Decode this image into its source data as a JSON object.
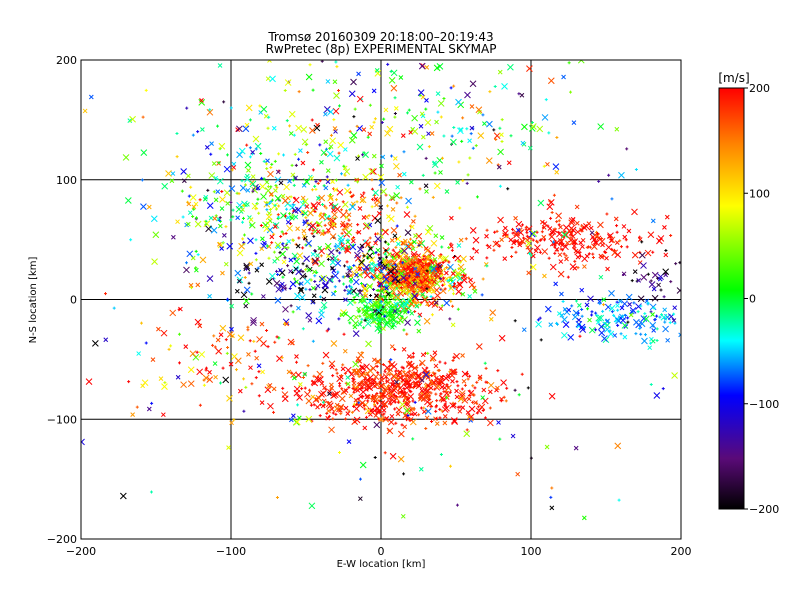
{
  "chart_data": {
    "type": "scatter",
    "title": "Tromsø 20160309 20:18:00–20:19:43",
    "subtitle": "RwPretec (8p) EXPERIMENTAL SKYMAP",
    "xlabel": "E-W location [km]",
    "ylabel": "N-S location [km]",
    "xlim": [
      -200,
      200
    ],
    "ylim": [
      -200,
      200
    ],
    "x_ticks": [
      -200,
      -100,
      0,
      100,
      200
    ],
    "y_ticks": [
      -200,
      -100,
      0,
      100,
      200
    ],
    "x_tick_labels": [
      "−200",
      "−100",
      "0",
      "100",
      "200"
    ],
    "y_tick_labels": [
      "−200",
      "−100",
      "0",
      "100",
      "200"
    ],
    "grid": true,
    "colorbar": {
      "label": "[m/s]",
      "range": [
        -200,
        200
      ],
      "ticks": [
        -200,
        -100,
        0,
        100,
        200
      ],
      "tick_labels": [
        "−200",
        "−100",
        "0",
        "100",
        "200"
      ],
      "colormap": [
        "#000000",
        "#5a0a78",
        "#0000ff",
        "#00ffff",
        "#00ff00",
        "#ffff00",
        "#ff8000",
        "#ff0000"
      ]
    },
    "markers": [
      "x",
      "+"
    ],
    "clusters": [
      {
        "x": 20,
        "y": 20,
        "sx": 18,
        "sy": 14,
        "n": 520,
        "v": 120,
        "vs": 90
      },
      {
        "x": 0,
        "y": -10,
        "sx": 10,
        "sy": 7,
        "n": 180,
        "v": 10,
        "vs": 25
      },
      {
        "x": 10,
        "y": -75,
        "sx": 32,
        "sy": 14,
        "n": 620,
        "v": 190,
        "vs": 25
      },
      {
        "x": 25,
        "y": 20,
        "sx": 8,
        "sy": 6,
        "n": 200,
        "v": 180,
        "vs": 40
      },
      {
        "x": -80,
        "y": 80,
        "sx": 30,
        "sy": 25,
        "n": 280,
        "v": 10,
        "vs": 70
      },
      {
        "x": -30,
        "y": 70,
        "sx": 25,
        "sy": 18,
        "n": 170,
        "v": 180,
        "vs": 50
      },
      {
        "x": 120,
        "y": 50,
        "sx": 30,
        "sy": 10,
        "n": 240,
        "v": 195,
        "vs": 15
      },
      {
        "x": 160,
        "y": -15,
        "sx": 30,
        "sy": 10,
        "n": 150,
        "v": -60,
        "vs": 30
      },
      {
        "x": 0,
        "y": 140,
        "sx": 65,
        "sy": 35,
        "n": 300,
        "v": 10,
        "vs": 90
      },
      {
        "x": -30,
        "y": 20,
        "sx": 35,
        "sy": 18,
        "n": 240,
        "v": -100,
        "vs": 90
      },
      {
        "x": -110,
        "y": -50,
        "sx": 30,
        "sy": 25,
        "n": 90,
        "v": 170,
        "vs": 50
      },
      {
        "x": 0,
        "y": 0,
        "sx": 110,
        "sy": 100,
        "n": 260,
        "v": 0,
        "vs": 140
      },
      {
        "x": 185,
        "y": 20,
        "sx": 10,
        "sy": 10,
        "n": 30,
        "v": -170,
        "vs": 30
      }
    ]
  }
}
